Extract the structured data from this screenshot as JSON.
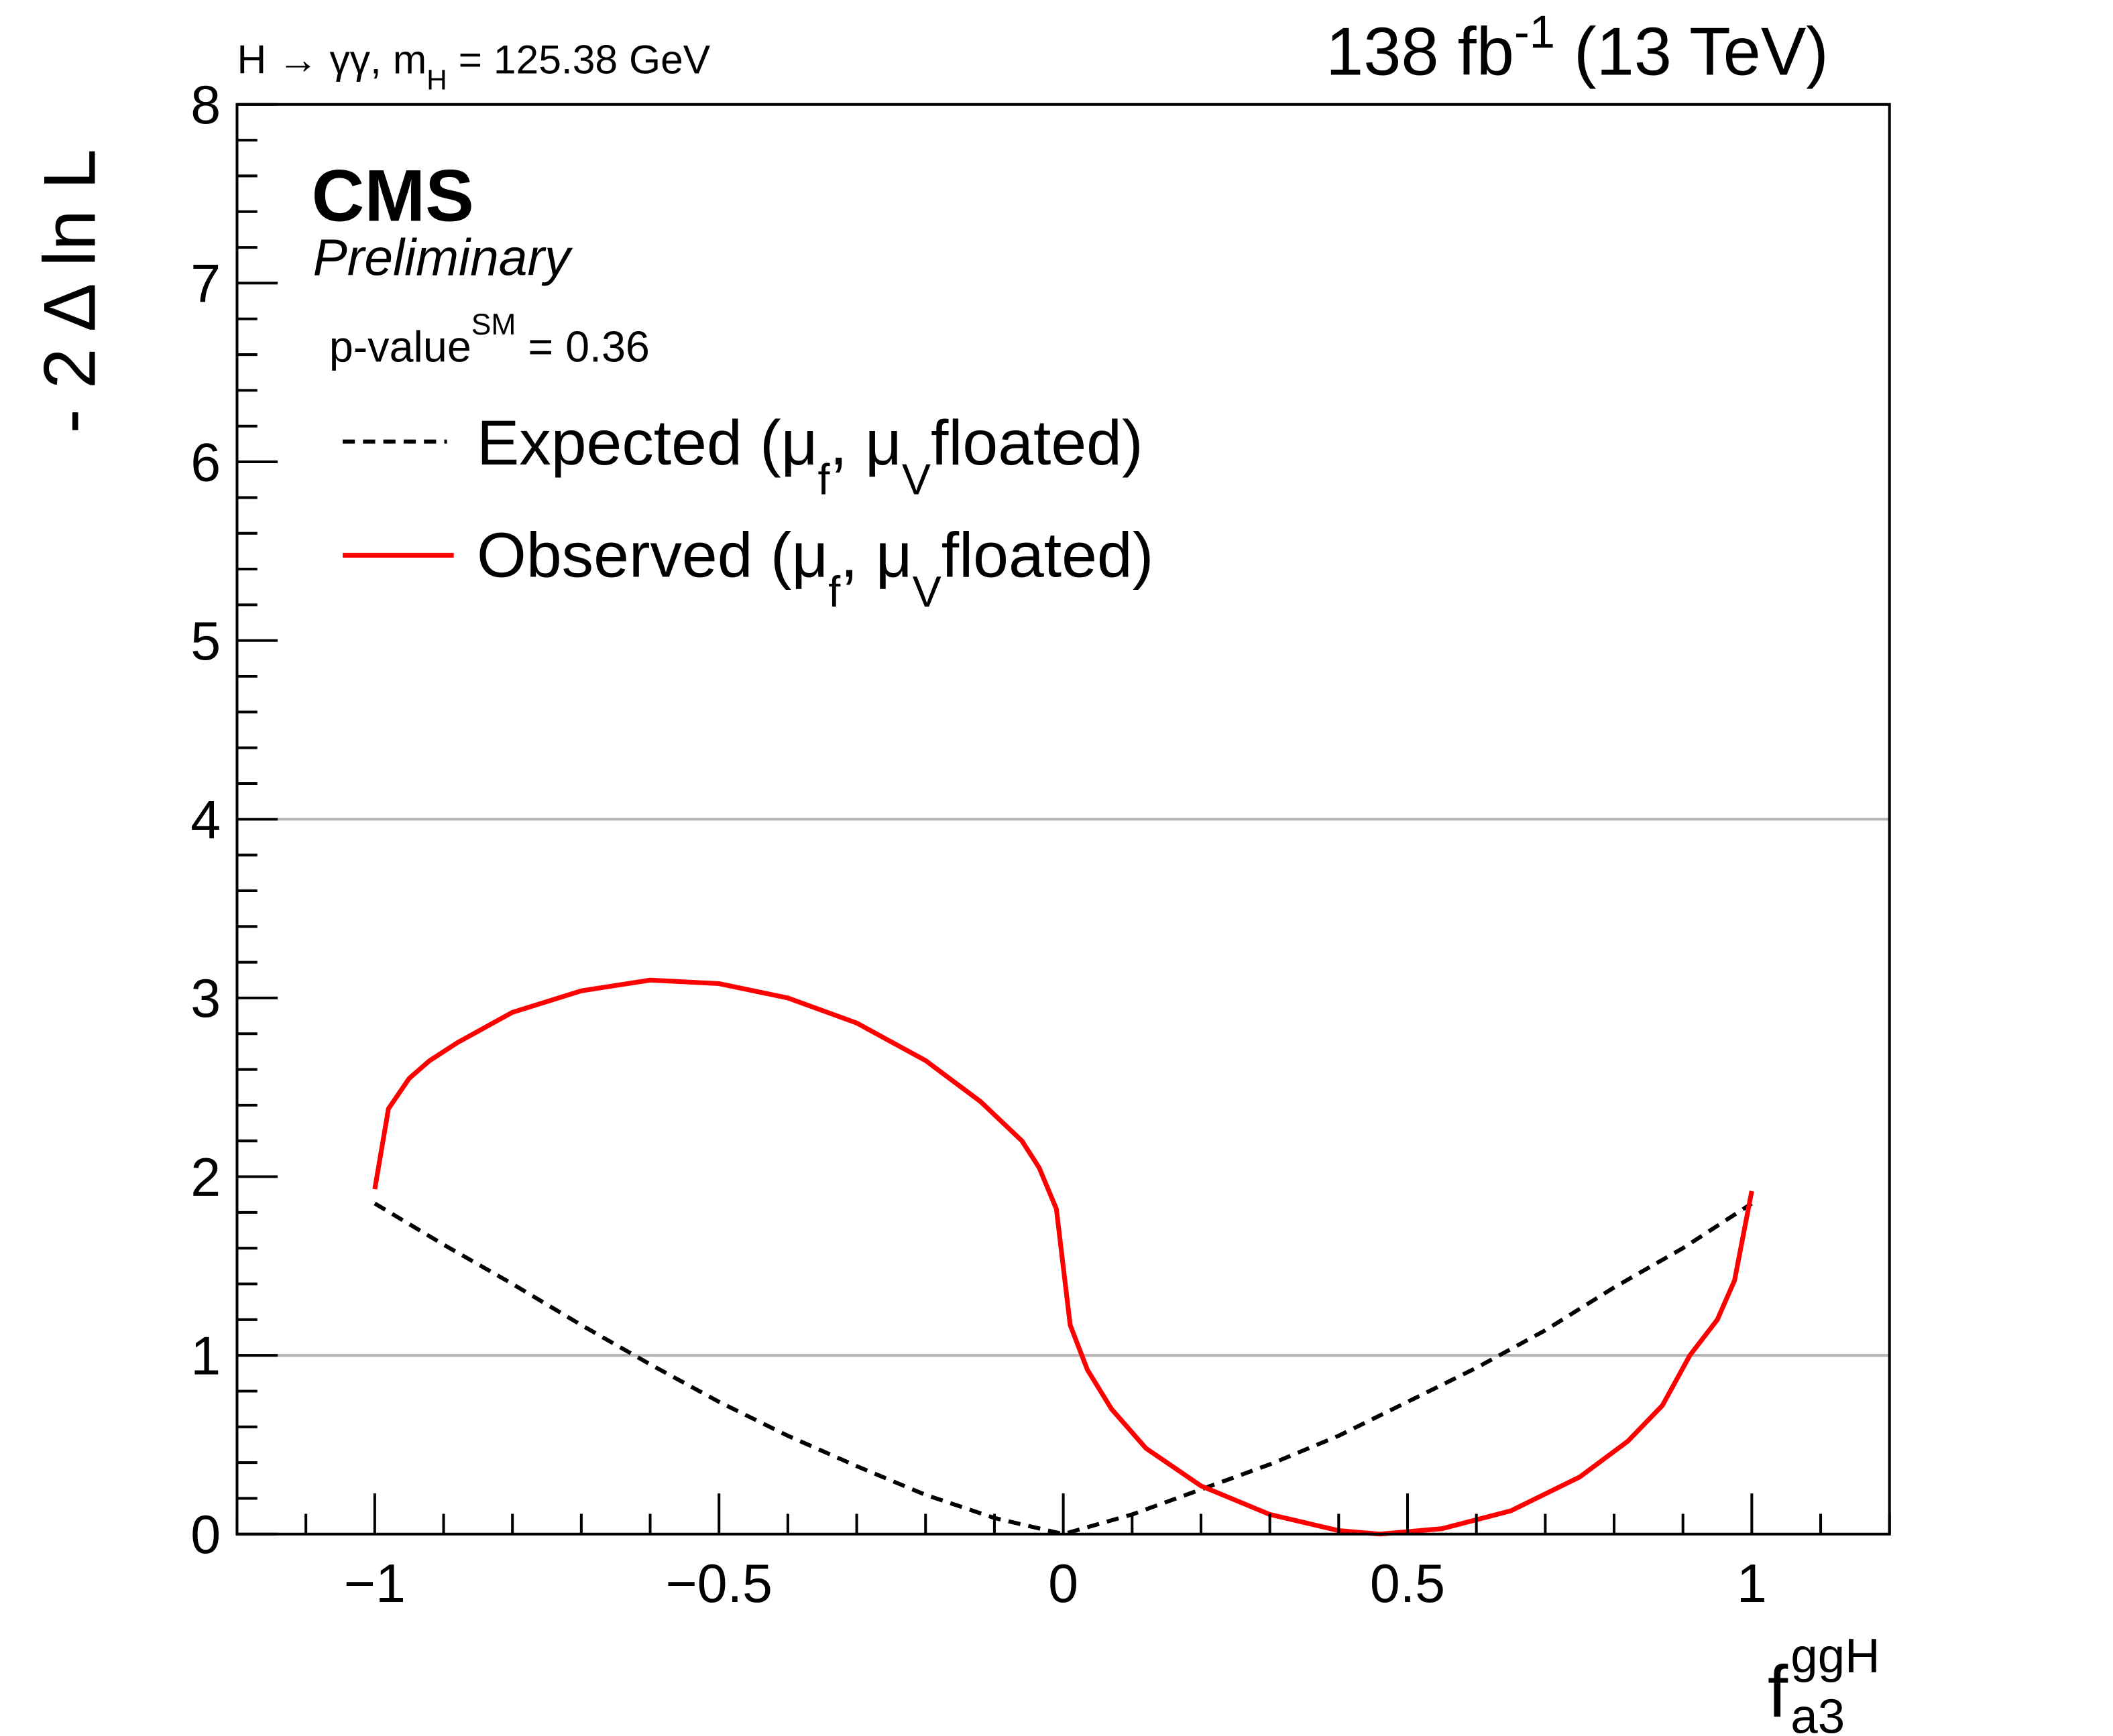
{
  "chart_data": {
    "type": "line",
    "title_left": "H → γγ, m",
    "title_left_sub": "H",
    "title_left_tail": " = 125.38 GeV",
    "lumi": "138 fb",
    "lumi_sup": "-1",
    "lumi_tail": " (13 TeV)",
    "cms_label": "CMS",
    "preliminary_label": "Preliminary",
    "pvalue_text": "p-value",
    "pvalue_sup": "SM",
    "pvalue_tail": " = 0.36",
    "ylabel": "- 2 Δ ln L",
    "xlabel": "f",
    "xlabel_sup": "ggH",
    "xlabel_sub": "a3",
    "xlim": [
      -1.2,
      1.2
    ],
    "ylim": [
      0,
      8
    ],
    "x_ticks": [
      {
        "value": -1,
        "label": "−1"
      },
      {
        "value": -0.5,
        "label": "−0.5"
      },
      {
        "value": 0,
        "label": "0"
      },
      {
        "value": 0.5,
        "label": "0.5"
      },
      {
        "value": 1,
        "label": "1"
      }
    ],
    "y_ticks": [
      {
        "value": 0,
        "label": "0"
      },
      {
        "value": 1,
        "label": "1"
      },
      {
        "value": 2,
        "label": "2"
      },
      {
        "value": 3,
        "label": "3"
      },
      {
        "value": 4,
        "label": "4"
      },
      {
        "value": 5,
        "label": "5"
      },
      {
        "value": 6,
        "label": "6"
      },
      {
        "value": 7,
        "label": "7"
      },
      {
        "value": 8,
        "label": "8"
      }
    ],
    "reference_lines": [
      1,
      4
    ],
    "legend": {
      "placement": "top-left",
      "entries": [
        {
          "label": "Expected (μ",
          "sub1": "f",
          "mid": ", μ",
          "sub2": "V",
          "tail": "floated)"
        },
        {
          "label": "Observed (μ",
          "sub1": "f",
          "mid": ", μ",
          "sub2": "V",
          "tail": "floated)"
        }
      ]
    },
    "series": [
      {
        "name": "Expected (mu_f, mu_V floated)",
        "style": "dashed",
        "color": "#000000",
        "x": [
          -1.0,
          -0.9,
          -0.8,
          -0.7,
          -0.6,
          -0.5,
          -0.4,
          -0.3,
          -0.2,
          -0.1,
          0.0,
          0.1,
          0.2,
          0.3,
          0.4,
          0.5,
          0.6,
          0.7,
          0.8,
          0.9,
          1.0
        ],
        "y": [
          1.85,
          1.62,
          1.4,
          1.17,
          0.95,
          0.74,
          0.55,
          0.38,
          0.22,
          0.09,
          0.0,
          0.11,
          0.25,
          0.39,
          0.55,
          0.74,
          0.93,
          1.14,
          1.38,
          1.6,
          1.85
        ]
      },
      {
        "name": "Observed (mu_f, mu_V floated)",
        "style": "solid",
        "color": "#ff0000",
        "x": [
          -1.0,
          -0.98,
          -0.95,
          -0.92,
          -0.88,
          -0.8,
          -0.7,
          -0.6,
          -0.5,
          -0.4,
          -0.3,
          -0.2,
          -0.12,
          -0.06,
          -0.035,
          -0.01,
          0.01,
          0.035,
          0.07,
          0.12,
          0.2,
          0.3,
          0.4,
          0.46,
          0.55,
          0.65,
          0.75,
          0.82,
          0.87,
          0.91,
          0.95,
          0.975,
          1.0
        ],
        "y": [
          1.93,
          2.38,
          2.55,
          2.65,
          2.75,
          2.92,
          3.04,
          3.1,
          3.08,
          3.0,
          2.86,
          2.65,
          2.42,
          2.2,
          2.05,
          1.82,
          1.17,
          0.92,
          0.7,
          0.48,
          0.27,
          0.11,
          0.02,
          0.0,
          0.03,
          0.13,
          0.32,
          0.52,
          0.72,
          1.0,
          1.2,
          1.42,
          1.92
        ]
      }
    ]
  }
}
